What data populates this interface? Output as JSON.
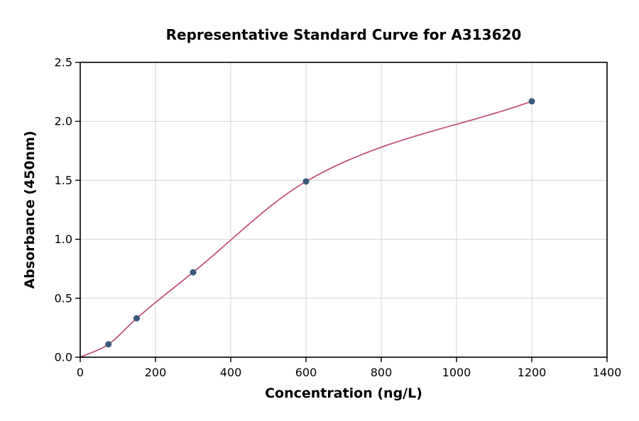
{
  "chart_data": {
    "type": "scatter",
    "title": "Representative Standard Curve for A313620",
    "xlabel": "Concentration (ng/L)",
    "ylabel": "Absorbance (450nm)",
    "xlim": [
      0,
      1400
    ],
    "ylim": [
      0,
      2.5
    ],
    "xticks": [
      0,
      200,
      400,
      600,
      800,
      1000,
      1200,
      1400
    ],
    "xtick_labels": [
      "0",
      "200",
      "400",
      "600",
      "800",
      "1000",
      "1200",
      "1400"
    ],
    "yticks": [
      0,
      0.5,
      1.0,
      1.5,
      2.0,
      2.5
    ],
    "ytick_labels": [
      "0.0",
      "0.5",
      "1.0",
      "1.5",
      "2.0",
      "2.5"
    ],
    "grid": true,
    "legend_position": "none",
    "series": [
      {
        "name": "standard-points",
        "type": "scatter",
        "x": [
          75,
          150,
          300,
          600,
          1200
        ],
        "y": [
          0.11,
          0.33,
          0.72,
          1.49,
          2.17
        ],
        "color": "#3a5a7c"
      },
      {
        "name": "fit-curve",
        "type": "line",
        "x": [
          0,
          75,
          150,
          300,
          600,
          1200
        ],
        "y": [
          0.0,
          0.11,
          0.33,
          0.72,
          1.49,
          2.17
        ],
        "color": "#c2567a"
      }
    ],
    "styles": {
      "grid_color": "#d3d3d3",
      "axis_color": "#000000",
      "background": "#ffffff",
      "point_radius": 4.5,
      "curve_width": 1.8
    }
  }
}
